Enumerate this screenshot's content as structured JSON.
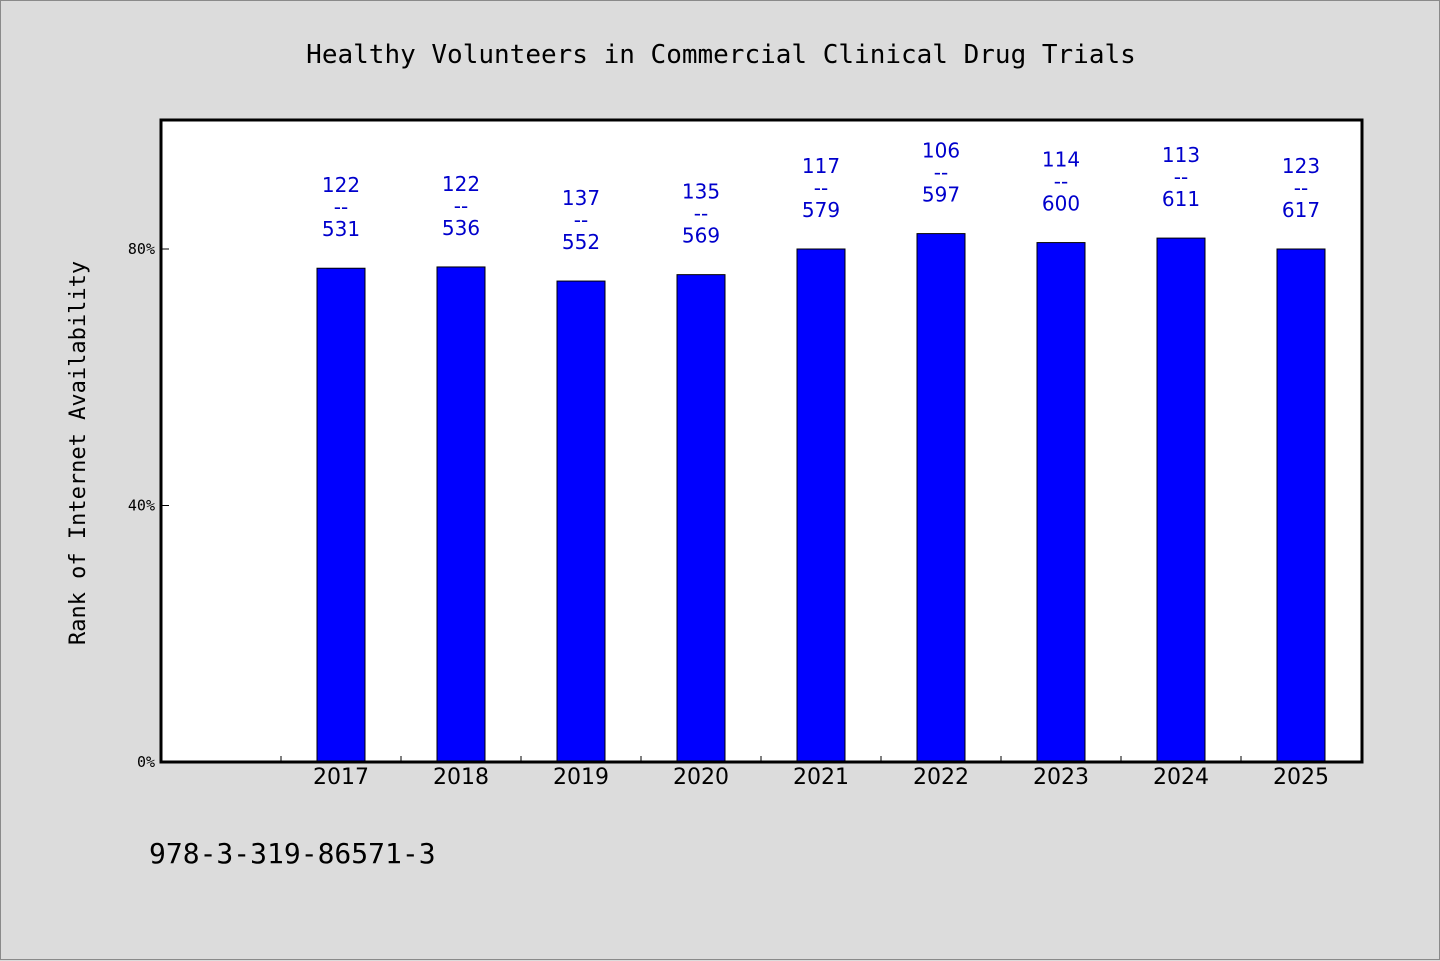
{
  "chart_data": {
    "type": "bar",
    "title": "Healthy Volunteers in Commercial Clinical Drug Trials",
    "ylabel": "Rank of Internet Availability",
    "xlabel": "",
    "categories": [
      "2017",
      "2018",
      "2019",
      "2020",
      "2021",
      "2022",
      "2023",
      "2024",
      "2025"
    ],
    "values": [
      77.0,
      77.2,
      75.0,
      76.0,
      80.0,
      82.4,
      81.0,
      81.7,
      80.0
    ],
    "data_labels": [
      [
        "122",
        "--",
        "531"
      ],
      [
        "122",
        "--",
        "536"
      ],
      [
        "137",
        "--",
        "552"
      ],
      [
        "135",
        "--",
        "569"
      ],
      [
        "117",
        "--",
        "579"
      ],
      [
        "106",
        "--",
        "597"
      ],
      [
        "114",
        "--",
        "600"
      ],
      [
        "113",
        "--",
        "611"
      ],
      [
        "123",
        "--",
        "617"
      ]
    ],
    "yticks": [
      {
        "value": 0,
        "label": "0%"
      },
      {
        "value": 40,
        "label": "40%"
      },
      {
        "value": 80,
        "label": "80%"
      }
    ],
    "ylim": [
      0,
      100
    ],
    "grid": false,
    "bar_color": "#0000ff",
    "label_color": "#0000cc"
  },
  "footer": {
    "isbn": "978-3-319-86571-3"
  }
}
